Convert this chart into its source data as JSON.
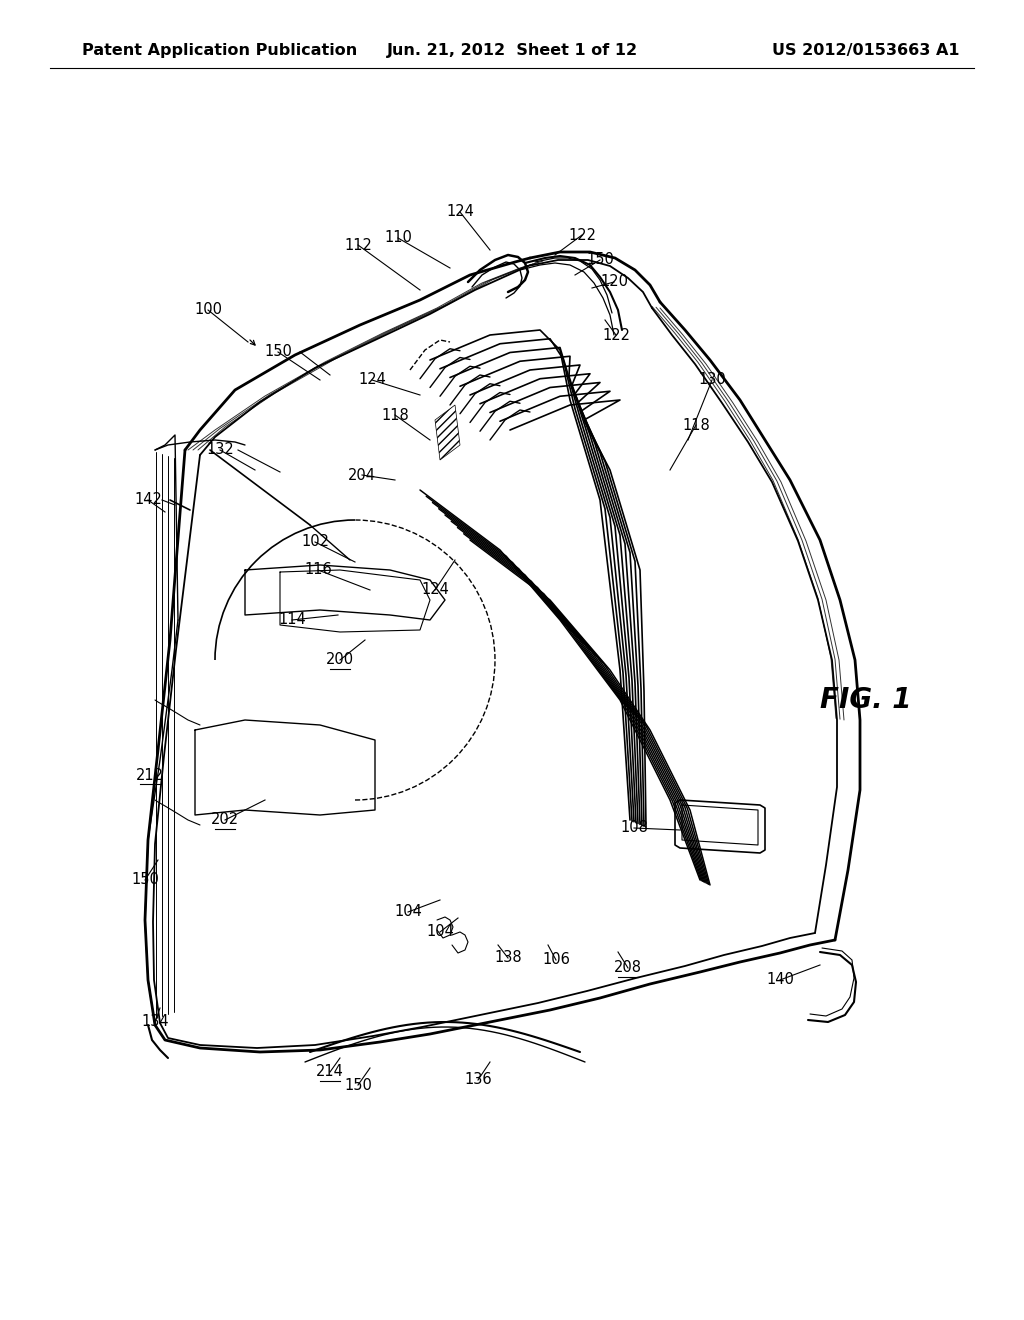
{
  "bg_color": "#ffffff",
  "header_left": "Patent Application Publication",
  "header_mid": "Jun. 21, 2012  Sheet 1 of 12",
  "header_right": "US 2012/0153663 A1",
  "fig_label": "FIG. 1",
  "header_fontsize": 11.5,
  "fig_label_fontsize": 20,
  "ref_fontsize": 10,
  "line_color": "#000000"
}
